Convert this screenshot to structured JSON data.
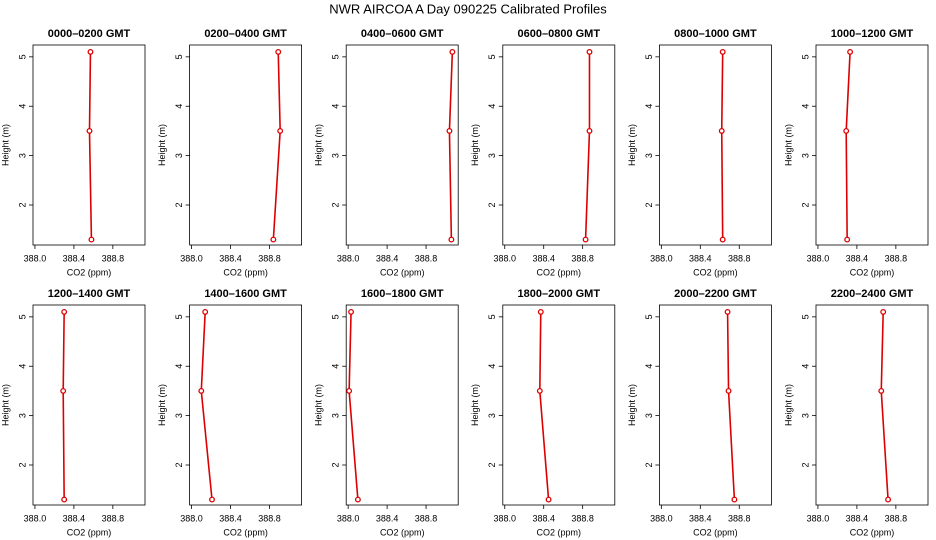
{
  "title": "NWR AIRCOA A  Day 090225  Calibrated Profiles",
  "chart_data": [
    {
      "type": "line",
      "title": "0000–0200 GMT",
      "xlabel": "CO2 (ppm)",
      "ylabel": "Height (m)",
      "x": [
        388.58,
        388.56,
        388.57
      ],
      "series": [
        {
          "color": "#dd0000",
          "values": [
            1.3,
            3.5,
            5.1
          ]
        }
      ],
      "xlim": [
        387.98,
        389.13
      ],
      "ylim": [
        1.19,
        5.24
      ],
      "xticks": [
        {
          "value": 388,
          "label": "388.0"
        },
        388.4,
        388.8
      ],
      "yticks": [
        2,
        3,
        4,
        5
      ]
    },
    {
      "type": "line",
      "title": "0200–0400 GMT",
      "xlabel": "CO2 (ppm)",
      "ylabel": "Height (m)",
      "x": [
        388.84,
        388.91,
        388.89
      ],
      "series": [
        {
          "color": "#dd0000",
          "values": [
            1.3,
            3.5,
            5.1
          ]
        }
      ],
      "xlim": [
        387.98,
        389.13
      ],
      "ylim": [
        1.19,
        5.24
      ],
      "xticks": [
        {
          "value": 388,
          "label": "388.0"
        },
        388.4,
        388.8
      ],
      "yticks": [
        2,
        3,
        4,
        5
      ]
    },
    {
      "type": "line",
      "title": "0400–0600 GMT",
      "xlabel": "CO2 (ppm)",
      "ylabel": "Height (m)",
      "x": [
        389.06,
        389.04,
        389.07
      ],
      "series": [
        {
          "color": "#dd0000",
          "values": [
            1.3,
            3.5,
            5.1
          ]
        }
      ],
      "xlim": [
        387.98,
        389.13
      ],
      "ylim": [
        1.19,
        5.24
      ],
      "xticks": [
        {
          "value": 388,
          "label": "388.0"
        },
        388.4,
        388.8
      ],
      "yticks": [
        2,
        3,
        4,
        5
      ]
    },
    {
      "type": "line",
      "title": "0600–0800 GMT",
      "xlabel": "CO2 (ppm)",
      "ylabel": "Height (m)",
      "x": [
        388.83,
        388.87,
        388.87
      ],
      "series": [
        {
          "color": "#dd0000",
          "values": [
            1.3,
            3.5,
            5.1
          ]
        }
      ],
      "xlim": [
        387.98,
        389.13
      ],
      "ylim": [
        1.19,
        5.24
      ],
      "xticks": [
        {
          "value": 388,
          "label": "388.0"
        },
        388.4,
        388.8
      ],
      "yticks": [
        2,
        3,
        4,
        5
      ]
    },
    {
      "type": "line",
      "title": "0800–1000 GMT",
      "xlabel": "CO2 (ppm)",
      "ylabel": "Height (m)",
      "x": [
        388.63,
        388.62,
        388.63
      ],
      "series": [
        {
          "color": "#dd0000",
          "values": [
            1.3,
            3.5,
            5.1
          ]
        }
      ],
      "xlim": [
        387.98,
        389.13
      ],
      "ylim": [
        1.19,
        5.24
      ],
      "xticks": [
        {
          "value": 388,
          "label": "388.0"
        },
        388.4,
        388.8
      ],
      "yticks": [
        2,
        3,
        4,
        5
      ]
    },
    {
      "type": "line",
      "title": "1000–1200 GMT",
      "xlabel": "CO2 (ppm)",
      "ylabel": "Height (m)",
      "x": [
        388.3,
        388.29,
        388.33
      ],
      "series": [
        {
          "color": "#dd0000",
          "values": [
            1.3,
            3.5,
            5.1
          ]
        }
      ],
      "xlim": [
        387.98,
        389.13
      ],
      "ylim": [
        1.19,
        5.24
      ],
      "xticks": [
        {
          "value": 388,
          "label": "388.0"
        },
        388.4,
        388.8
      ],
      "yticks": [
        2,
        3,
        4,
        5
      ]
    },
    {
      "type": "line",
      "title": "1200–1400 GMT",
      "xlabel": "CO2 (ppm)",
      "ylabel": "Height (m)",
      "x": [
        388.3,
        388.29,
        388.3
      ],
      "series": [
        {
          "color": "#dd0000",
          "values": [
            1.3,
            3.5,
            5.1
          ]
        }
      ],
      "xlim": [
        387.98,
        389.13
      ],
      "ylim": [
        1.19,
        5.24
      ],
      "xticks": [
        {
          "value": 388,
          "label": "388.0"
        },
        388.4,
        388.8
      ],
      "yticks": [
        2,
        3,
        4,
        5
      ]
    },
    {
      "type": "line",
      "title": "1400–1600 GMT",
      "xlabel": "CO2 (ppm)",
      "ylabel": "Height (m)",
      "x": [
        388.21,
        388.1,
        388.14
      ],
      "series": [
        {
          "color": "#dd0000",
          "values": [
            1.3,
            3.5,
            5.1
          ]
        }
      ],
      "xlim": [
        387.98,
        389.13
      ],
      "ylim": [
        1.19,
        5.24
      ],
      "xticks": [
        {
          "value": 388,
          "label": "388.0"
        },
        388.4,
        388.8
      ],
      "yticks": [
        2,
        3,
        4,
        5
      ]
    },
    {
      "type": "line",
      "title": "1600–1800 GMT",
      "xlabel": "CO2 (ppm)",
      "ylabel": "Height (m)",
      "x": [
        388.1,
        388.01,
        388.03
      ],
      "series": [
        {
          "color": "#dd0000",
          "values": [
            1.3,
            3.5,
            5.1
          ]
        }
      ],
      "xlim": [
        387.98,
        389.13
      ],
      "ylim": [
        1.19,
        5.24
      ],
      "xticks": [
        {
          "value": 388,
          "label": "388.0"
        },
        388.4,
        388.8
      ],
      "yticks": [
        2,
        3,
        4,
        5
      ]
    },
    {
      "type": "line",
      "title": "1800–2000 GMT",
      "xlabel": "CO2 (ppm)",
      "ylabel": "Height (m)",
      "x": [
        388.45,
        388.36,
        388.37
      ],
      "series": [
        {
          "color": "#dd0000",
          "values": [
            1.3,
            3.5,
            5.1
          ]
        }
      ],
      "xlim": [
        387.98,
        389.13
      ],
      "ylim": [
        1.19,
        5.24
      ],
      "xticks": [
        {
          "value": 388,
          "label": "388.0"
        },
        388.4,
        388.8
      ],
      "yticks": [
        2,
        3,
        4,
        5
      ]
    },
    {
      "type": "line",
      "title": "2000–2200 GMT",
      "xlabel": "CO2 (ppm)",
      "ylabel": "Height (m)",
      "x": [
        388.75,
        388.69,
        388.68
      ],
      "series": [
        {
          "color": "#dd0000",
          "values": [
            1.3,
            3.5,
            5.1
          ]
        }
      ],
      "xlim": [
        387.98,
        389.13
      ],
      "ylim": [
        1.19,
        5.24
      ],
      "xticks": [
        {
          "value": 388,
          "label": "388.0"
        },
        388.4,
        388.8
      ],
      "yticks": [
        2,
        3,
        4,
        5
      ]
    },
    {
      "type": "line",
      "title": "2200–2400 GMT",
      "xlabel": "CO2 (ppm)",
      "ylabel": "Height (m)",
      "x": [
        388.72,
        388.65,
        388.67
      ],
      "series": [
        {
          "color": "#dd0000",
          "values": [
            1.3,
            3.5,
            5.1
          ]
        }
      ],
      "xlim": [
        387.98,
        389.13
      ],
      "ylim": [
        1.19,
        5.24
      ],
      "xticks": [
        {
          "value": 388,
          "label": "388.0"
        },
        388.4,
        388.8
      ],
      "yticks": [
        2,
        3,
        4,
        5
      ]
    }
  ]
}
